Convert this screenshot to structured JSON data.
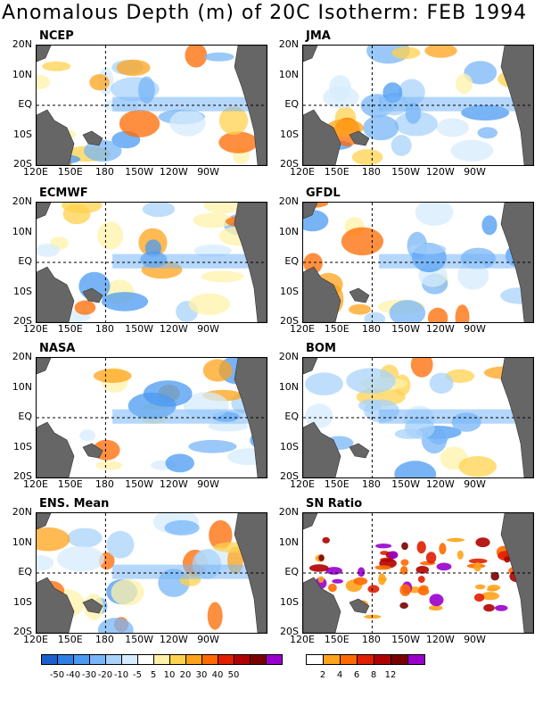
{
  "title": "Anomalous Depth (m) of 20C Isotherm: FEB 1994",
  "y_ticks": [
    "20N",
    "10N",
    "EQ",
    "10S",
    "20S"
  ],
  "x_ticks": [
    "120E",
    "150E",
    "180",
    "150W",
    "120W",
    "90W"
  ],
  "panels": [
    {
      "name": "NCEP"
    },
    {
      "name": "JMA"
    },
    {
      "name": "ECMWF"
    },
    {
      "name": "GFDL"
    },
    {
      "name": "NASA"
    },
    {
      "name": "BOM"
    },
    {
      "name": "ENS. Mean"
    },
    {
      "name": "SN Ratio"
    }
  ],
  "legend_anomaly": {
    "colors": [
      "#1a5fd0",
      "#2f7ee6",
      "#4b9af2",
      "#78b6f7",
      "#a9d3fa",
      "#d6ecfc",
      "#ffffff",
      "#fff1a8",
      "#ffd24d",
      "#ffa31a",
      "#ff6a00",
      "#e01e00",
      "#b00000",
      "#7a0000",
      "#9900cc"
    ],
    "labels": [
      "-50",
      "-40",
      "-30",
      "-20",
      "-10",
      "-5",
      "5",
      "10",
      "20",
      "30",
      "40",
      "50"
    ]
  },
  "legend_snr": {
    "colors": [
      "#ffffff",
      "#ffa31a",
      "#ff6a00",
      "#e01e00",
      "#b00000",
      "#7a0000",
      "#9900cc"
    ],
    "labels": [
      "2",
      "4",
      "6",
      "8",
      "12"
    ]
  }
}
